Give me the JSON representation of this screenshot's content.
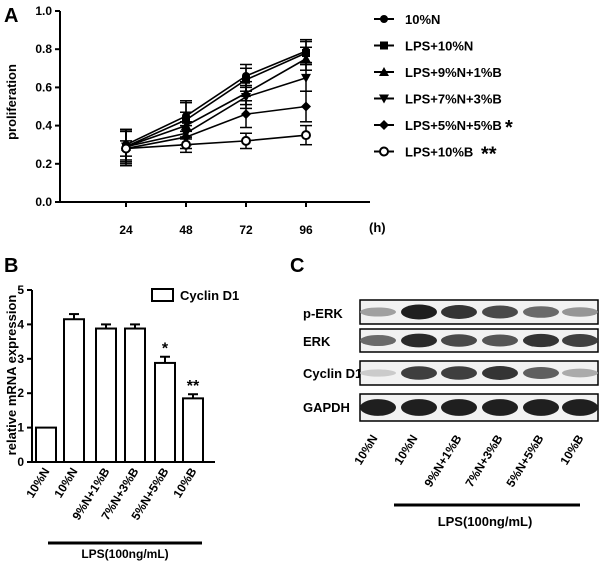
{
  "panels": {
    "a": "A",
    "b": "B",
    "c": "C"
  },
  "chart_data": [
    {
      "panel": "A",
      "type": "line",
      "title": "",
      "xlabel": "(h)",
      "ylabel": "proliferation",
      "x": [
        24,
        48,
        72,
        96
      ],
      "x_ticks": [
        "24",
        "48",
        "72",
        "96"
      ],
      "ylim": [
        0.0,
        1.0
      ],
      "y_ticks": [
        "0.0",
        "0.2",
        "0.4",
        "0.6",
        "0.8",
        "1.0"
      ],
      "grid": false,
      "legend_position": "right",
      "series": [
        {
          "name": "10%N",
          "marker": "circle",
          "values": [
            0.3,
            0.45,
            0.66,
            0.79
          ],
          "errors": [
            0.08,
            0.08,
            0.06,
            0.06
          ]
        },
        {
          "name": "LPS+10%N",
          "marker": "square",
          "values": [
            0.29,
            0.43,
            0.64,
            0.78
          ],
          "errors": [
            0.09,
            0.09,
            0.06,
            0.06
          ]
        },
        {
          "name": "LPS+9%N+1%B",
          "marker": "triangle-up",
          "values": [
            0.29,
            0.4,
            0.57,
            0.75
          ],
          "errors": [
            0.08,
            0.07,
            0.06,
            0.06
          ]
        },
        {
          "name": "LPS+7%N+3%B",
          "marker": "triangle-down",
          "values": [
            0.29,
            0.36,
            0.55,
            0.65
          ],
          "errors": [
            0.08,
            0.06,
            0.06,
            0.07
          ]
        },
        {
          "name": "LPS+5%N+5%B",
          "marker": "diamond",
          "values": [
            0.28,
            0.34,
            0.46,
            0.5
          ],
          "errors": [
            0.09,
            0.06,
            0.07,
            0.08
          ]
        },
        {
          "name": "LPS+10%B",
          "marker": "open-circle",
          "values": [
            0.28,
            0.3,
            0.32,
            0.35
          ],
          "errors": [
            0.04,
            0.04,
            0.04,
            0.05
          ]
        }
      ],
      "significance": {
        "LPS+5%N+5%B": "*",
        "LPS+10%B": "**"
      }
    },
    {
      "panel": "B",
      "type": "bar",
      "title": "",
      "xlabel": "",
      "ylabel": "relative mRNA expression",
      "categories": [
        "10%N",
        "10%N",
        "9%N+1%B",
        "7%N+3%B",
        "5%N+5%B",
        "10%B"
      ],
      "series": [
        {
          "name": "Cyclin D1",
          "values": [
            1.0,
            4.15,
            3.88,
            3.88,
            2.88,
            1.85
          ],
          "errors": [
            0.0,
            0.15,
            0.12,
            0.12,
            0.18,
            0.12
          ]
        }
      ],
      "significance": [
        "",
        "",
        "",
        "",
        "*",
        "**"
      ],
      "ylim": [
        0,
        5
      ],
      "y_ticks": [
        "0",
        "1",
        "2",
        "3",
        "4",
        "5"
      ],
      "group_label": "LPS(100ng/mL)",
      "legend_position": "top-right"
    },
    {
      "panel": "C",
      "type": "table",
      "title": "",
      "rows": [
        "p-ERK",
        "ERK",
        "Cyclin D1",
        "GAPDH"
      ],
      "lanes": [
        "10%N",
        "10%N",
        "9%N+1%B",
        "7%N+3%B",
        "5%N+5%B",
        "10%B"
      ],
      "band_intensity": [
        [
          0.35,
          0.95,
          0.85,
          0.75,
          0.6,
          0.4
        ],
        [
          0.6,
          0.9,
          0.75,
          0.7,
          0.85,
          0.8
        ],
        [
          0.15,
          0.8,
          0.8,
          0.85,
          0.65,
          0.3
        ],
        [
          0.95,
          0.95,
          0.95,
          0.95,
          0.95,
          0.95
        ]
      ],
      "group_label": "LPS(100ng/mL)"
    }
  ]
}
